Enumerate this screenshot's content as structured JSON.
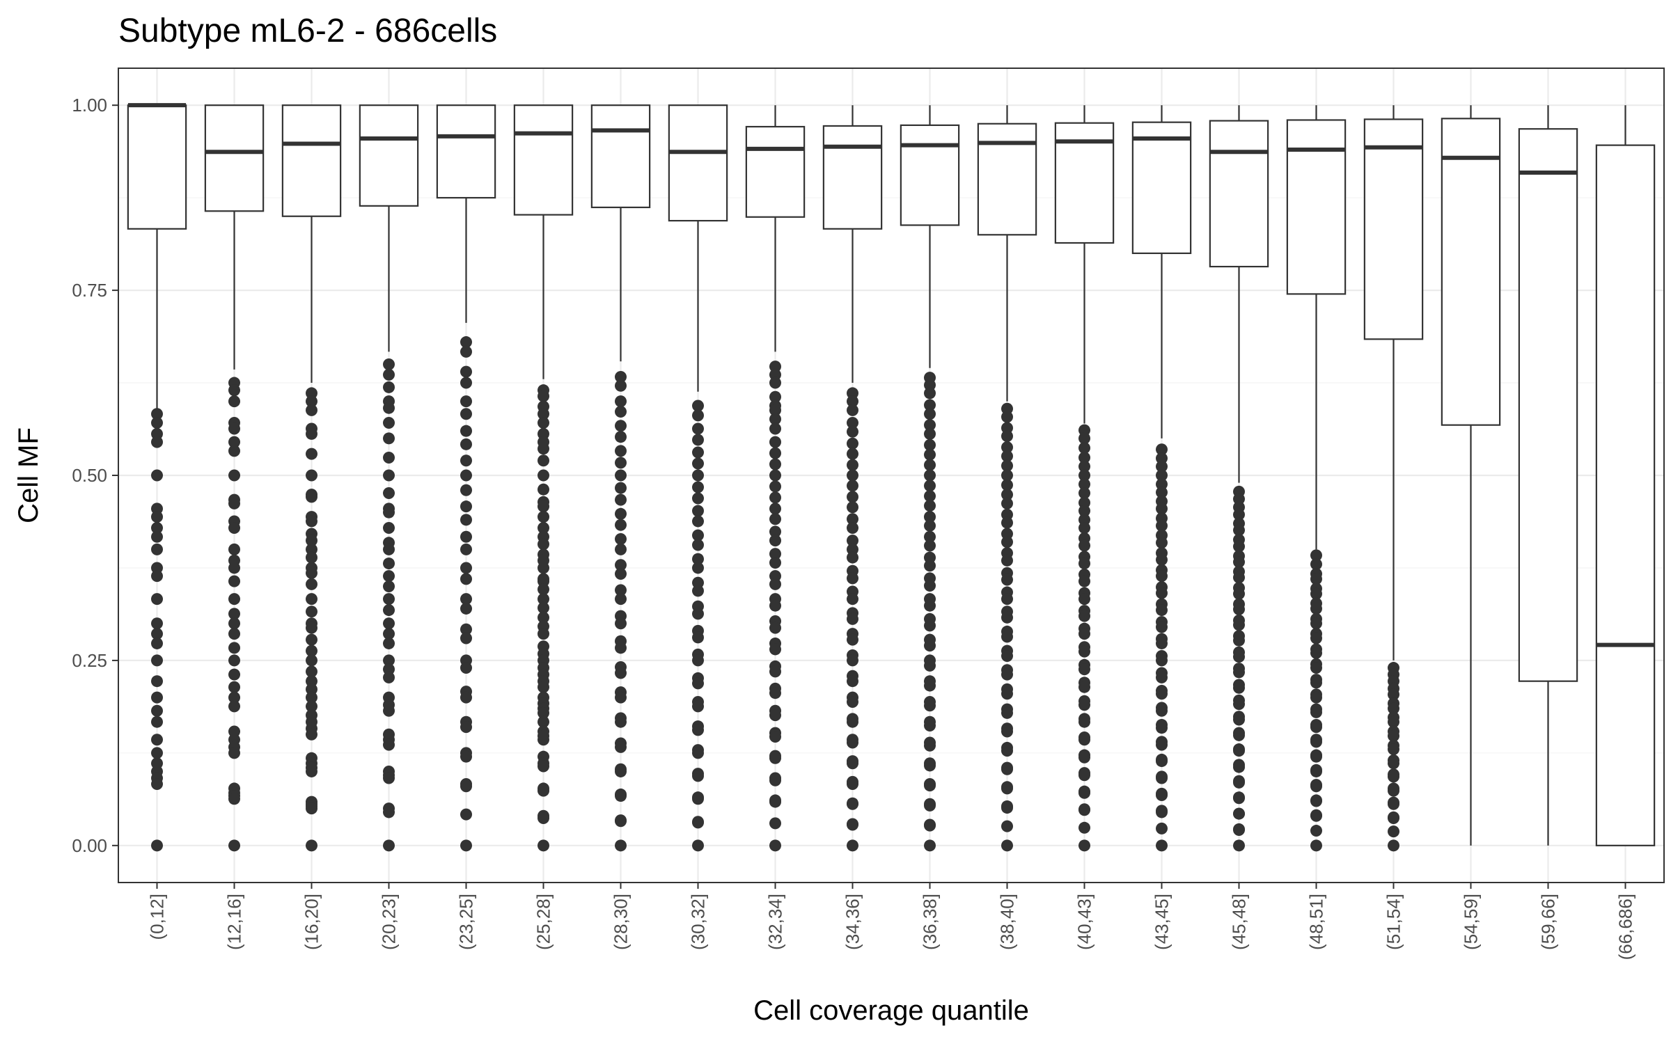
{
  "chart_data": {
    "type": "boxplot",
    "title": "Subtype mL6-2 - 686cells",
    "xlabel": "Cell coverage quantile",
    "ylabel": "Cell MF",
    "ylim": [
      -0.05,
      1.05
    ],
    "yticks": [
      0.0,
      0.25,
      0.5,
      0.75,
      1.0
    ],
    "ytick_labels": [
      "0.00",
      "0.25",
      "0.50",
      "0.75",
      "1.00"
    ],
    "grid": true,
    "categories": [
      "(0,12]",
      "(12,16]",
      "(16,20]",
      "(20,23]",
      "(23,25]",
      "(25,28]",
      "(28,30]",
      "(30,32]",
      "(32,34]",
      "(34,36]",
      "(36,38]",
      "(38,40]",
      "(40,43]",
      "(43,45]",
      "(45,48]",
      "(48,51]",
      "(51,54]",
      "(54,59]",
      "(59,66]",
      "(66,686]"
    ],
    "boxes": [
      {
        "q1": 0.833,
        "median": 1.0,
        "q3": 1.0,
        "whisker_low": 0.587,
        "whisker_high": 1.0
      },
      {
        "q1": 0.857,
        "median": 0.937,
        "q3": 1.0,
        "whisker_low": 0.643,
        "whisker_high": 1.0
      },
      {
        "q1": 0.85,
        "median": 0.948,
        "q3": 1.0,
        "whisker_low": 0.625,
        "whisker_high": 1.0
      },
      {
        "q1": 0.864,
        "median": 0.955,
        "q3": 1.0,
        "whisker_low": 0.667,
        "whisker_high": 1.0
      },
      {
        "q1": 0.875,
        "median": 0.958,
        "q3": 1.0,
        "whisker_low": 0.706,
        "whisker_high": 1.0
      },
      {
        "q1": 0.852,
        "median": 0.962,
        "q3": 1.0,
        "whisker_low": 0.63,
        "whisker_high": 1.0
      },
      {
        "q1": 0.862,
        "median": 0.966,
        "q3": 1.0,
        "whisker_low": 0.654,
        "whisker_high": 1.0
      },
      {
        "q1": 0.844,
        "median": 0.937,
        "q3": 1.0,
        "whisker_low": 0.613,
        "whisker_high": 1.0
      },
      {
        "q1": 0.849,
        "median": 0.941,
        "q3": 0.971,
        "whisker_low": 0.667,
        "whisker_high": 1.0
      },
      {
        "q1": 0.833,
        "median": 0.944,
        "q3": 0.972,
        "whisker_low": 0.625,
        "whisker_high": 1.0
      },
      {
        "q1": 0.838,
        "median": 0.946,
        "q3": 0.973,
        "whisker_low": 0.645,
        "whisker_high": 1.0
      },
      {
        "q1": 0.825,
        "median": 0.949,
        "q3": 0.975,
        "whisker_low": 0.6,
        "whisker_high": 1.0
      },
      {
        "q1": 0.814,
        "median": 0.951,
        "q3": 0.976,
        "whisker_low": 0.57,
        "whisker_high": 1.0
      },
      {
        "q1": 0.8,
        "median": 0.955,
        "q3": 0.977,
        "whisker_low": 0.55,
        "whisker_high": 1.0
      },
      {
        "q1": 0.782,
        "median": 0.937,
        "q3": 0.979,
        "whisker_low": 0.49,
        "whisker_high": 1.0
      },
      {
        "q1": 0.745,
        "median": 0.94,
        "q3": 0.98,
        "whisker_low": 0.4,
        "whisker_high": 1.0
      },
      {
        "q1": 0.684,
        "median": 0.943,
        "q3": 0.981,
        "whisker_low": 0.25,
        "whisker_high": 1.0
      },
      {
        "q1": 0.568,
        "median": 0.929,
        "q3": 0.982,
        "whisker_low": 0.0,
        "whisker_high": 1.0
      },
      {
        "q1": 0.222,
        "median": 0.909,
        "q3": 0.968,
        "whisker_low": 0.0,
        "whisker_high": 1.0
      },
      {
        "q1": 0.0,
        "median": 0.271,
        "q3": 0.946,
        "whisker_low": 0.0,
        "whisker_high": 1.0
      }
    ],
    "outliers": [
      [
        0.583,
        0.571,
        0.556,
        0.545,
        0.5,
        0.455,
        0.444,
        0.429,
        0.417,
        0.4,
        0.375,
        0.364,
        0.333,
        0.3,
        0.286,
        0.273,
        0.25,
        0.222,
        0.2,
        0.182,
        0.167,
        0.143,
        0.125,
        0.111,
        0.1,
        0.091,
        0.083,
        0.0
      ],
      [
        0.625,
        0.615,
        0.6,
        0.571,
        0.563,
        0.545,
        0.533,
        0.5,
        0.467,
        0.462,
        0.438,
        0.429,
        0.4,
        0.385,
        0.375,
        0.357,
        0.333,
        0.313,
        0.3,
        0.286,
        0.267,
        0.25,
        0.231,
        0.214,
        0.2,
        0.188,
        0.154,
        0.143,
        0.133,
        0.125,
        0.077,
        0.071,
        0.067,
        0.063,
        0.0
      ],
      [
        0.611,
        0.6,
        0.588,
        0.563,
        0.556,
        0.529,
        0.5,
        0.474,
        0.471,
        0.444,
        0.438,
        0.421,
        0.412,
        0.4,
        0.389,
        0.375,
        0.368,
        0.353,
        0.333,
        0.316,
        0.3,
        0.294,
        0.278,
        0.263,
        0.25,
        0.235,
        0.222,
        0.211,
        0.2,
        0.188,
        0.176,
        0.167,
        0.158,
        0.15,
        0.118,
        0.111,
        0.105,
        0.1,
        0.059,
        0.056,
        0.053,
        0.05,
        0.0
      ],
      [
        0.65,
        0.636,
        0.619,
        0.6,
        0.591,
        0.571,
        0.55,
        0.524,
        0.5,
        0.476,
        0.455,
        0.45,
        0.429,
        0.409,
        0.4,
        0.381,
        0.364,
        0.35,
        0.333,
        0.318,
        0.3,
        0.286,
        0.273,
        0.25,
        0.238,
        0.227,
        0.2,
        0.19,
        0.182,
        0.15,
        0.143,
        0.136,
        0.1,
        0.095,
        0.091,
        0.05,
        0.045,
        0.0
      ],
      [
        0.68,
        0.667,
        0.64,
        0.625,
        0.6,
        0.583,
        0.56,
        0.542,
        0.52,
        0.5,
        0.48,
        0.458,
        0.44,
        0.417,
        0.4,
        0.375,
        0.36,
        0.333,
        0.32,
        0.292,
        0.28,
        0.25,
        0.24,
        0.208,
        0.2,
        0.167,
        0.16,
        0.125,
        0.12,
        0.083,
        0.08,
        0.042,
        0.0
      ],
      [
        0.615,
        0.607,
        0.593,
        0.583,
        0.571,
        0.556,
        0.545,
        0.536,
        0.52,
        0.5,
        0.481,
        0.464,
        0.458,
        0.444,
        0.429,
        0.417,
        0.407,
        0.393,
        0.385,
        0.375,
        0.36,
        0.357,
        0.346,
        0.333,
        0.321,
        0.308,
        0.296,
        0.286,
        0.269,
        0.259,
        0.25,
        0.24,
        0.231,
        0.222,
        0.214,
        0.2,
        0.192,
        0.185,
        0.179,
        0.167,
        0.154,
        0.148,
        0.143,
        0.12,
        0.111,
        0.107,
        0.077,
        0.074,
        0.04,
        0.037,
        0.0
      ],
      [
        0.633,
        0.621,
        0.6,
        0.586,
        0.567,
        0.552,
        0.533,
        0.517,
        0.5,
        0.483,
        0.467,
        0.448,
        0.433,
        0.414,
        0.4,
        0.379,
        0.367,
        0.345,
        0.333,
        0.31,
        0.3,
        0.276,
        0.267,
        0.241,
        0.233,
        0.207,
        0.2,
        0.172,
        0.167,
        0.138,
        0.133,
        0.103,
        0.1,
        0.069,
        0.067,
        0.034,
        0.033,
        0.0
      ],
      [
        0.594,
        0.581,
        0.563,
        0.548,
        0.531,
        0.516,
        0.5,
        0.484,
        0.469,
        0.452,
        0.438,
        0.419,
        0.406,
        0.387,
        0.375,
        0.355,
        0.344,
        0.323,
        0.313,
        0.29,
        0.281,
        0.258,
        0.25,
        0.226,
        0.219,
        0.194,
        0.188,
        0.161,
        0.156,
        0.129,
        0.125,
        0.097,
        0.094,
        0.065,
        0.063,
        0.032,
        0.031,
        0.0
      ],
      [
        0.647,
        0.636,
        0.625,
        0.606,
        0.594,
        0.588,
        0.576,
        0.563,
        0.545,
        0.53,
        0.515,
        0.5,
        0.485,
        0.47,
        0.455,
        0.441,
        0.424,
        0.412,
        0.394,
        0.382,
        0.364,
        0.353,
        0.333,
        0.324,
        0.303,
        0.294,
        0.273,
        0.265,
        0.242,
        0.235,
        0.212,
        0.206,
        0.182,
        0.176,
        0.152,
        0.147,
        0.121,
        0.118,
        0.091,
        0.088,
        0.061,
        0.059,
        0.03,
        0.0
      ],
      [
        0.611,
        0.6,
        0.588,
        0.571,
        0.559,
        0.543,
        0.529,
        0.514,
        0.5,
        0.486,
        0.471,
        0.457,
        0.441,
        0.429,
        0.412,
        0.4,
        0.389,
        0.371,
        0.361,
        0.343,
        0.333,
        0.314,
        0.306,
        0.286,
        0.278,
        0.257,
        0.25,
        0.229,
        0.222,
        0.2,
        0.194,
        0.171,
        0.167,
        0.143,
        0.139,
        0.114,
        0.111,
        0.086,
        0.083,
        0.057,
        0.056,
        0.029,
        0.028,
        0.0
      ],
      [
        0.632,
        0.622,
        0.611,
        0.595,
        0.583,
        0.568,
        0.556,
        0.541,
        0.528,
        0.514,
        0.5,
        0.486,
        0.472,
        0.459,
        0.444,
        0.432,
        0.417,
        0.405,
        0.389,
        0.378,
        0.361,
        0.351,
        0.333,
        0.324,
        0.306,
        0.297,
        0.278,
        0.27,
        0.25,
        0.243,
        0.222,
        0.216,
        0.194,
        0.189,
        0.167,
        0.162,
        0.139,
        0.135,
        0.111,
        0.108,
        0.083,
        0.081,
        0.056,
        0.054,
        0.028,
        0.027,
        0.0
      ],
      [
        0.59,
        0.579,
        0.564,
        0.553,
        0.538,
        0.526,
        0.513,
        0.5,
        0.487,
        0.474,
        0.462,
        0.447,
        0.436,
        0.421,
        0.41,
        0.395,
        0.385,
        0.368,
        0.359,
        0.342,
        0.333,
        0.316,
        0.308,
        0.289,
        0.282,
        0.263,
        0.256,
        0.237,
        0.231,
        0.211,
        0.205,
        0.184,
        0.179,
        0.158,
        0.154,
        0.132,
        0.128,
        0.105,
        0.103,
        0.079,
        0.077,
        0.053,
        0.051,
        0.026,
        0.0
      ],
      [
        0.561,
        0.55,
        0.537,
        0.524,
        0.512,
        0.5,
        0.488,
        0.476,
        0.463,
        0.452,
        0.44,
        0.429,
        0.415,
        0.405,
        0.39,
        0.381,
        0.366,
        0.357,
        0.341,
        0.333,
        0.317,
        0.31,
        0.293,
        0.286,
        0.268,
        0.262,
        0.244,
        0.238,
        0.22,
        0.214,
        0.195,
        0.19,
        0.171,
        0.167,
        0.146,
        0.143,
        0.122,
        0.119,
        0.098,
        0.095,
        0.073,
        0.071,
        0.049,
        0.048,
        0.024,
        0.0
      ],
      [
        0.535,
        0.523,
        0.512,
        0.5,
        0.488,
        0.477,
        0.465,
        0.455,
        0.442,
        0.432,
        0.419,
        0.409,
        0.395,
        0.386,
        0.372,
        0.364,
        0.349,
        0.341,
        0.326,
        0.318,
        0.302,
        0.295,
        0.279,
        0.273,
        0.256,
        0.25,
        0.233,
        0.227,
        0.209,
        0.205,
        0.186,
        0.182,
        0.163,
        0.159,
        0.14,
        0.136,
        0.116,
        0.114,
        0.093,
        0.091,
        0.07,
        0.068,
        0.047,
        0.045,
        0.023,
        0.0
      ],
      [
        0.478,
        0.468,
        0.457,
        0.447,
        0.435,
        0.426,
        0.413,
        0.404,
        0.391,
        0.383,
        0.37,
        0.362,
        0.348,
        0.34,
        0.326,
        0.319,
        0.304,
        0.298,
        0.283,
        0.277,
        0.261,
        0.255,
        0.239,
        0.234,
        0.217,
        0.213,
        0.196,
        0.191,
        0.174,
        0.17,
        0.152,
        0.149,
        0.13,
        0.128,
        0.109,
        0.106,
        0.087,
        0.085,
        0.065,
        0.064,
        0.043,
        0.043,
        0.022,
        0.021,
        0.0
      ],
      [
        0.392,
        0.38,
        0.367,
        0.36,
        0.347,
        0.34,
        0.327,
        0.32,
        0.306,
        0.3,
        0.286,
        0.28,
        0.265,
        0.26,
        0.245,
        0.24,
        0.224,
        0.22,
        0.204,
        0.2,
        0.184,
        0.18,
        0.163,
        0.16,
        0.143,
        0.14,
        0.122,
        0.12,
        0.102,
        0.1,
        0.082,
        0.08,
        0.061,
        0.06,
        0.041,
        0.04,
        0.02,
        0.0
      ],
      [
        0.24,
        0.231,
        0.222,
        0.212,
        0.204,
        0.192,
        0.185,
        0.173,
        0.167,
        0.154,
        0.148,
        0.135,
        0.13,
        0.115,
        0.111,
        0.096,
        0.093,
        0.077,
        0.074,
        0.058,
        0.056,
        0.038,
        0.037,
        0.019,
        0.0
      ],
      [],
      [],
      []
    ]
  }
}
